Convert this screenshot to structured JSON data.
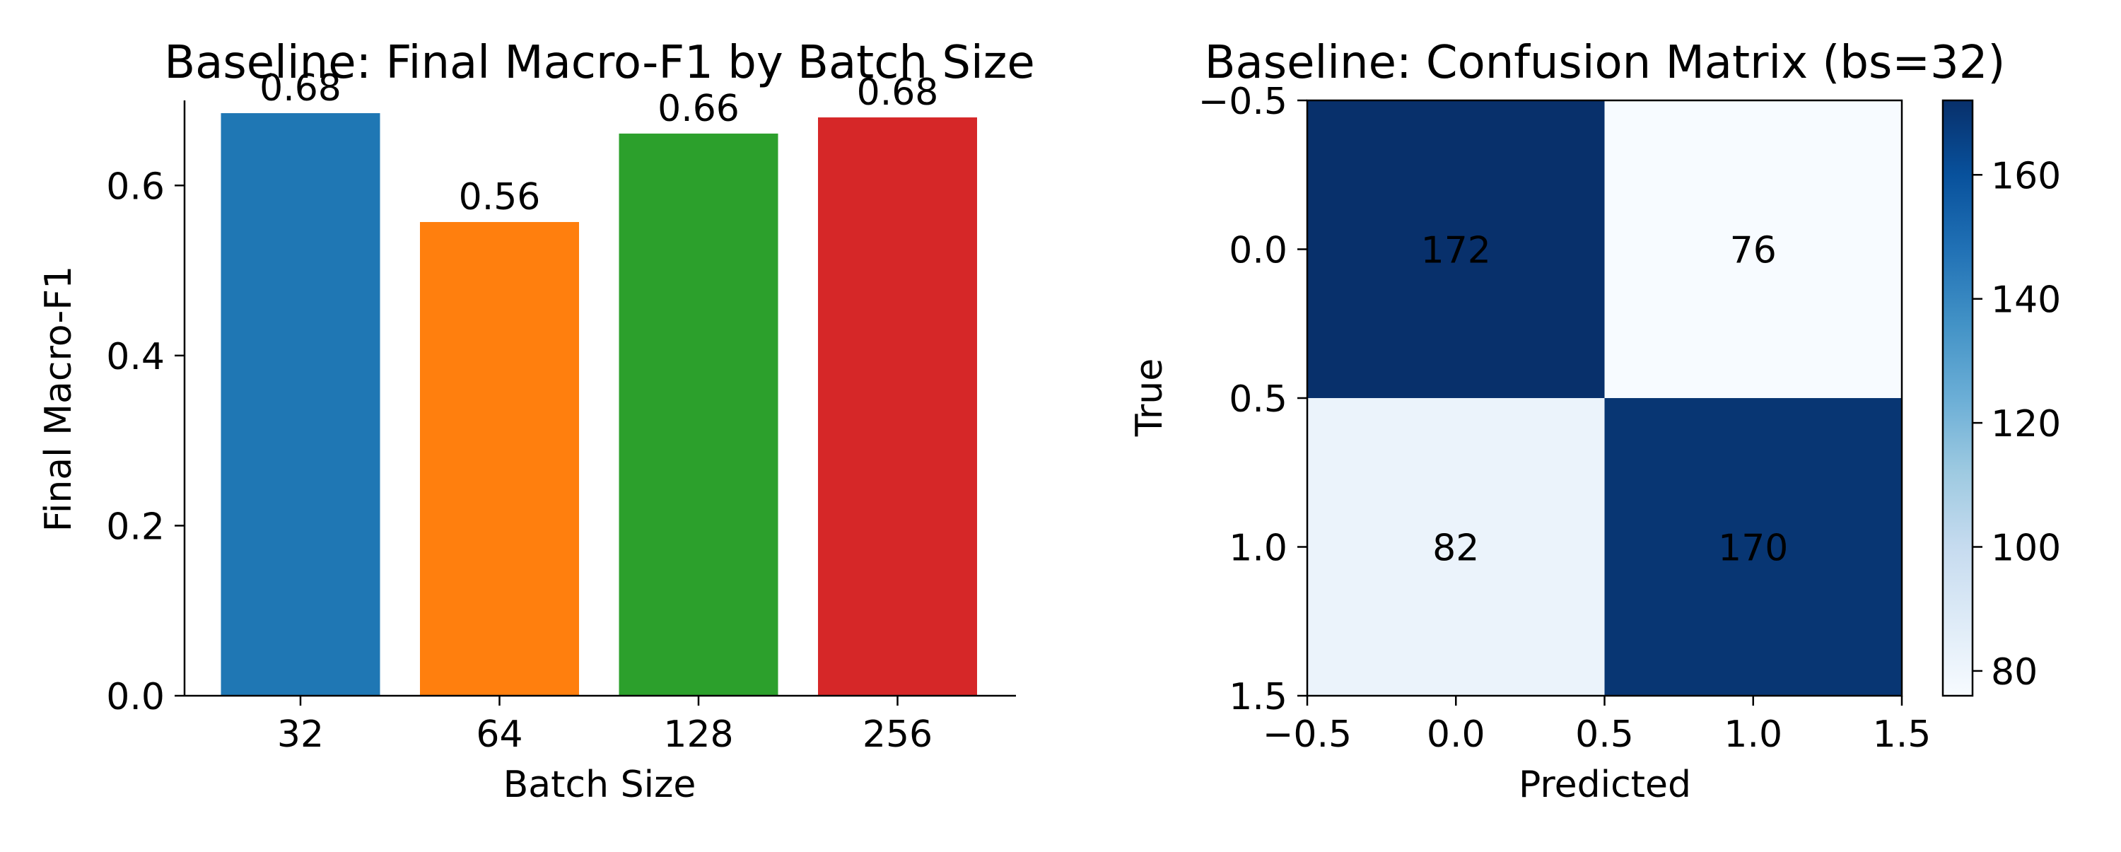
{
  "colors": {
    "bars": [
      "#1f77b4",
      "#ff7f0e",
      "#2ca02c",
      "#d62728"
    ],
    "heatmap_low": "#f7fbff",
    "heatmap_high": "#08306b"
  },
  "chart_data": [
    {
      "type": "bar",
      "title": "Baseline: Final Macro-F1 by Batch Size",
      "xlabel": "Batch Size",
      "ylabel": "Final Macro-F1",
      "categories": [
        "32",
        "64",
        "128",
        "256"
      ],
      "values": [
        0.685,
        0.557,
        0.661,
        0.68
      ],
      "data_labels": [
        "0.68",
        "0.56",
        "0.66",
        "0.68"
      ],
      "ylim": [
        0,
        0.7
      ],
      "yticks": [
        0.0,
        0.2,
        0.4,
        0.6
      ],
      "ytick_labels": [
        "0.0",
        "0.2",
        "0.4",
        "0.6"
      ],
      "grid": false
    },
    {
      "type": "heatmap",
      "title": "Baseline: Confusion Matrix (bs=32)",
      "xlabel": "Predicted",
      "ylabel": "True",
      "matrix": [
        [
          172,
          76
        ],
        [
          82,
          170
        ]
      ],
      "cell_labels": [
        [
          "172",
          "76"
        ],
        [
          "82",
          "170"
        ]
      ],
      "xlim": [
        -0.5,
        1.5
      ],
      "ylim": [
        1.5,
        -0.5
      ],
      "xticks": [
        -0.5,
        0.0,
        0.5,
        1.0,
        1.5
      ],
      "xtick_labels": [
        "−0.5",
        "0.0",
        "0.5",
        "1.0",
        "1.5"
      ],
      "yticks": [
        -0.5,
        0.0,
        0.5,
        1.0,
        1.5
      ],
      "ytick_labels": [
        "−0.5",
        "0.0",
        "0.5",
        "1.0",
        "1.5"
      ],
      "colorbar": {
        "min": 76,
        "max": 172,
        "ticks": [
          80,
          100,
          120,
          140,
          160
        ],
        "tick_labels": [
          "80",
          "100",
          "120",
          "140",
          "160"
        ],
        "colormap": "Blues"
      },
      "grid": false
    }
  ]
}
